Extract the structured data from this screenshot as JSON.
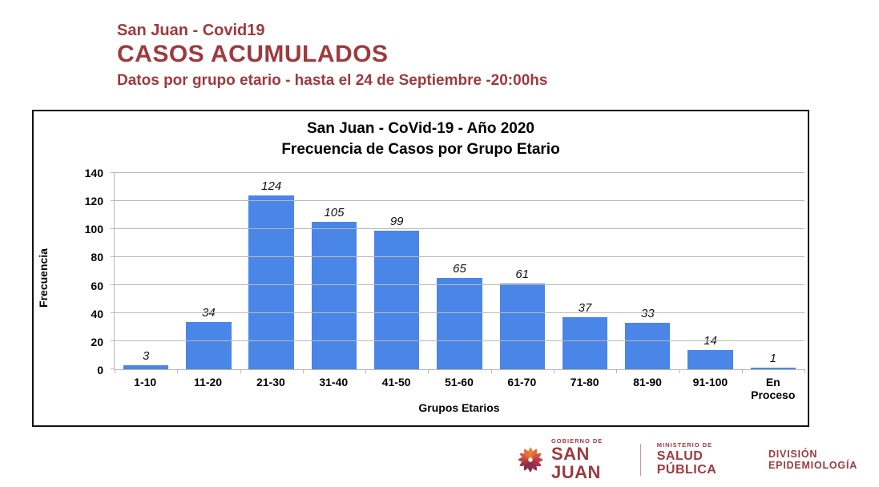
{
  "header": {
    "line1": "San Juan - Covid19",
    "line2": "CASOS ACUMULADOS",
    "line3": "Datos por grupo etario - hasta el 24 de Septiembre -20:00hs"
  },
  "chart_data": {
    "type": "bar",
    "title_line1": "San Juan - CoVid-19  -  Año 2020",
    "title_line2": "Frecuencia de Casos por Grupo Etario",
    "categories": [
      "1-10",
      "11-20",
      "21-30",
      "31-40",
      "41-50",
      "51-60",
      "61-70",
      "71-80",
      "81-90",
      "91-100",
      "En Proceso"
    ],
    "values": [
      3,
      34,
      124,
      105,
      99,
      65,
      61,
      37,
      33,
      14,
      1
    ],
    "xlabel": "Grupos Etarios",
    "ylabel": "Frecuencia",
    "ylim": [
      0,
      140
    ],
    "ytick_step": 20,
    "grid": true,
    "legend": false,
    "data_label_style": "italic",
    "bar_color": "#4a86e8"
  },
  "footer": {
    "gov_small": "GOBIERNO DE",
    "gov_big": "SAN JUAN",
    "ministry_small": "MINISTERIO DE",
    "ministry_big": "SALUD PÚBLICA",
    "division": "DIVISIÓN EPIDEMIOLOGÍA"
  },
  "colors": {
    "brand_red": "#9e3a3e",
    "bar_blue": "#4a86e8",
    "grid_gray": "#b8b8b8",
    "logo_petals": [
      "#e8853d",
      "#e06a3c",
      "#d4533f",
      "#c23e42",
      "#ad3246",
      "#952f4a",
      "#7f3450",
      "#8a2f48",
      "#a33344",
      "#bc4440",
      "#d05c3e",
      "#de743c"
    ]
  }
}
